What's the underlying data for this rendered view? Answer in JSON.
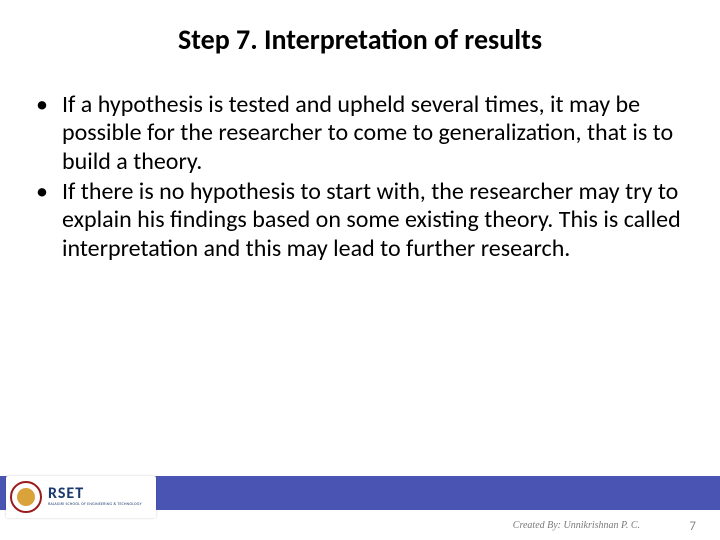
{
  "title": "Step 7. Interpretation of results",
  "title_color": "#000000",
  "title_fontsize": 28,
  "body_fontsize": 24,
  "bullets": [
    "If a hypothesis is tested and upheld several times, it may be possible for the researcher to come to generalization, that is to build a theory.",
    " If there is no hypothesis to start with, the researcher may try to explain his findings based on some existing theory. This is called interpretation and this may lead to further research."
  ],
  "footer": {
    "bar_color": "#4a55b3",
    "logo_main": "RSET",
    "logo_sub": "RAJAGIRI SCHOOL OF ENGINEERING & TECHNOLOGY",
    "logo_main_color": "#1a3a6e",
    "seal_border": "#9a1b1b",
    "seal_fill": "#d9a23a"
  },
  "credit": "Created By: Unnikrishnan P. C.",
  "page_number": "7",
  "background_color": "#ffffff"
}
